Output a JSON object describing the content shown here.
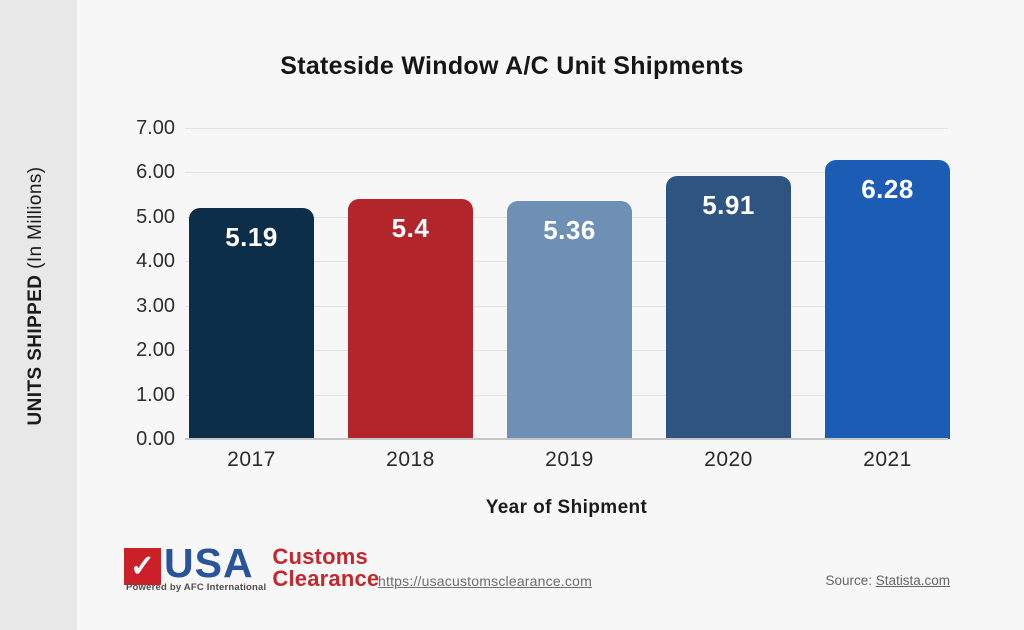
{
  "title": "Stateside Window A/C Unit Shipments",
  "y_axis_title": {
    "bold": "UNITS SHIPPED",
    "regular": " (In Millions)"
  },
  "x_axis_title": "Year of Shipment",
  "chart_data": {
    "type": "bar",
    "title": "Stateside Window A/C Unit Shipments",
    "xlabel": "Year of Shipment",
    "ylabel": "UNITS SHIPPED (In Millions)",
    "categories": [
      "2017",
      "2018",
      "2019",
      "2020",
      "2021"
    ],
    "values": [
      5.19,
      5.4,
      5.36,
      5.91,
      6.28
    ],
    "bar_labels": [
      "5.19",
      "5.4",
      "5.36",
      "5.91",
      "6.28"
    ],
    "bar_colors": [
      "#0d2e48",
      "#b2262b",
      "#6d90b4",
      "#2e5581",
      "#1c5cb5"
    ],
    "ylim": [
      0,
      7
    ],
    "ytick_labels": [
      "0.00",
      "1.00",
      "2.00",
      "3.00",
      "4.00",
      "5.00",
      "6.00",
      "7.00"
    ],
    "grid": true,
    "legend": "none"
  },
  "footer": {
    "logo": {
      "check_glyph": "✓",
      "square_color": "#cb2028",
      "usa_text": "USA",
      "usa_color": "#27549b",
      "powered_by": "Powered by AFC International",
      "customs_line1": "Customs",
      "customs_line2": "Clearance",
      "customs_color": "#c4272e"
    },
    "url": "https://usacustomsclearance.com",
    "source_prefix": "Source: ",
    "source_link": "Statista.com"
  },
  "colors": {
    "background": "#f7f7f7",
    "side_strip": "#e8e8e8",
    "gridline": "#e2e2e2",
    "axis_line": "#c6c6c6"
  }
}
